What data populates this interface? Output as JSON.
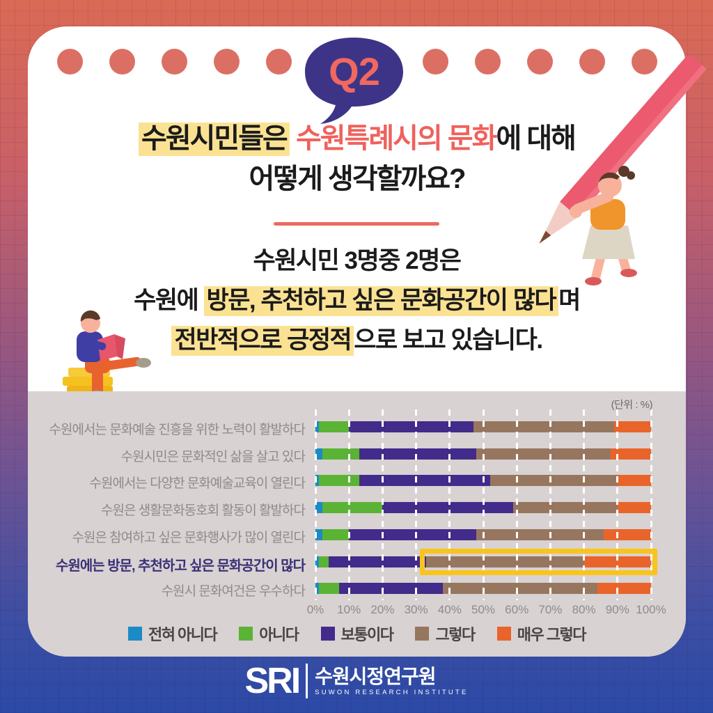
{
  "q_badge": "Q2",
  "title": {
    "line1_hl": "수원시민들은",
    "line1_accent": " 수원특례시의 문화",
    "line1_rest": "에 대해",
    "line2": "어떻게 생각할까요?"
  },
  "subtitle": {
    "line1": "수원시민 3명중 2명은",
    "line2_pre": "수원에 ",
    "line2_hl": "방문, 추천하고 싶은 문화공간이 많다",
    "line2_post": "며",
    "line3_hl": "전반적으로 긍정적",
    "line3_post": "으로 보고 있습니다."
  },
  "chart_data": {
    "type": "bar",
    "orientation": "horizontal",
    "stacked": true,
    "unit_label": "(단위 : %)",
    "categories": [
      "수원에서는 문화예술 진흥을 위한 노력이 활발하다",
      "수원시민은 문화적인 삶을 살고 있다",
      "수원에서는 다양한 문화예술교육이 열린다",
      "수원은 생활문화동호회 활동이 활발하다",
      "수원은 참여하고 싶은 문화행사가 많이 열린다",
      "수원에는 방문, 추천하고 싶은 문화공간이 많다",
      "수원시 문화여건은 우수하다"
    ],
    "series": [
      {
        "name": "전혀 아니다",
        "color": "#1B8AC6",
        "values": [
          1,
          2,
          1,
          2,
          2,
          1,
          1
        ]
      },
      {
        "name": "아니다",
        "color": "#5BB336",
        "values": [
          9,
          11,
          12,
          18,
          8,
          3,
          6
        ]
      },
      {
        "name": "보통이다",
        "color": "#422B8A",
        "values": [
          37,
          35,
          39,
          39,
          38,
          29,
          31
        ]
      },
      {
        "name": "그렇다",
        "color": "#97765F",
        "values": [
          42,
          40,
          38,
          31,
          38,
          47,
          46
        ]
      },
      {
        "name": "매우 그렇다",
        "color": "#E9642B",
        "values": [
          11,
          12,
          10,
          10,
          14,
          20,
          16
        ]
      }
    ],
    "x_ticks": [
      "0%",
      "10%",
      "20%",
      "30%",
      "40%",
      "50%",
      "60%",
      "70%",
      "80%",
      "90%",
      "100%"
    ],
    "xlim": [
      0,
      100
    ],
    "grid": "dashed-white-vertical",
    "legend_position": "bottom",
    "highlight": {
      "row": 5,
      "from_pct": 33,
      "to_pct": 100,
      "box_color": "#F9C41B"
    }
  },
  "footer": {
    "logo_abbr": "SRI",
    "org_ko": "수원시정연구원",
    "org_en": "SUWON RESEARCH INSTITUTE"
  }
}
